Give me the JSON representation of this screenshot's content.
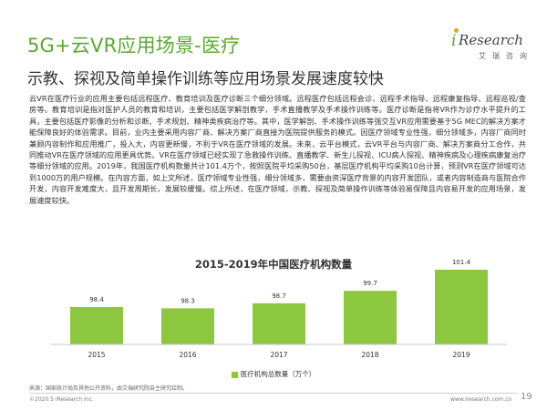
{
  "header": {
    "title": "5G+云VR应用场景-医疗",
    "subtitle": "示教、探视及简单操作训练等应用场景发展速度较快"
  },
  "logo": {
    "i": "i",
    "word": "Research",
    "cn": "艾瑞咨询"
  },
  "body": {
    "paragraph": "云VR在医疗行业的应用主要包括远程医疗、教育培训及医疗诊断三个细分领域。远程医疗包括远程会诊、远程手术指导、远程康复指导、远程巡视/查房等。教育培训是指对医护人员的教育和培训，主要包括医学解剖教学，手术直播教学及手术操作训练等。医疗诊断是指将VR作为诊疗水平提升的工具，主要包括医疗影像的分析和诊断、手术规划、精神类疾病治疗等。其中，医学解剖、手术操作训练等强交互VR应用需要基于5G MEC的解决方案才能保障良好的体验需求。目前，业内主要采用内容厂商、解决方案厂商直接为医院提供服务的模式。因医疗领域专业性强，细分领域多，内容厂商同时兼顾内容制作和应用推广，投入大，内容更新慢，不利于VR在医疗领域的发展。未来，云平台模式，云VR平台与内容厂商、解决方案商分工合作，共同推动VR在医疗领域的应用更具优势。VR在医疗领域已经实现了急救操作训练、直播教学、新生儿探视、ICU病人探视、精神疾病及心理疾病康复治疗等细分领域的应用。2019年，我国医疗机构数量共计101.4万个，按照医院平均采购50台，基层医疗机构平均采购10台计算，预测VR在医疗领域可达到1000万的用户规模。在内容方面，如上文所述，医疗领域专业性强，细分领域多，需要由资深医疗背景的内容开发团队，或者内容制造商与医院合作开发，内容开发难度大，且开发周期长，发展较缓慢。综上所述，在医疗领域，示教、探视及简单操作训练等体验易保障且内容易开发的应用场景，发展速度较快。"
  },
  "chart_data": {
    "type": "bar",
    "title": "2015-2019年中国医疗机构数量",
    "categories": [
      "2015",
      "2016",
      "2017",
      "2018",
      "2019"
    ],
    "series": [
      {
        "name": "医疗机构总数量（万个）",
        "values": [
          98.4,
          98.3,
          98.7,
          99.7,
          101.4
        ]
      }
    ],
    "value_labels": [
      "98.4",
      "98.3",
      "98.7",
      "99.7",
      "101.4"
    ],
    "xlabel": "",
    "ylabel": "",
    "ylim": [
      95.4,
      101.4
    ],
    "color": "#8dc63f",
    "legend_position": "bottom"
  },
  "footer": {
    "source": "来源：国家统计局及其他公开资料，由艾瑞研究院自主研究绘制。",
    "copyright": "©2020.5 iResearch Inc.",
    "site": "www.iresearch.com.cn",
    "page": "19"
  }
}
